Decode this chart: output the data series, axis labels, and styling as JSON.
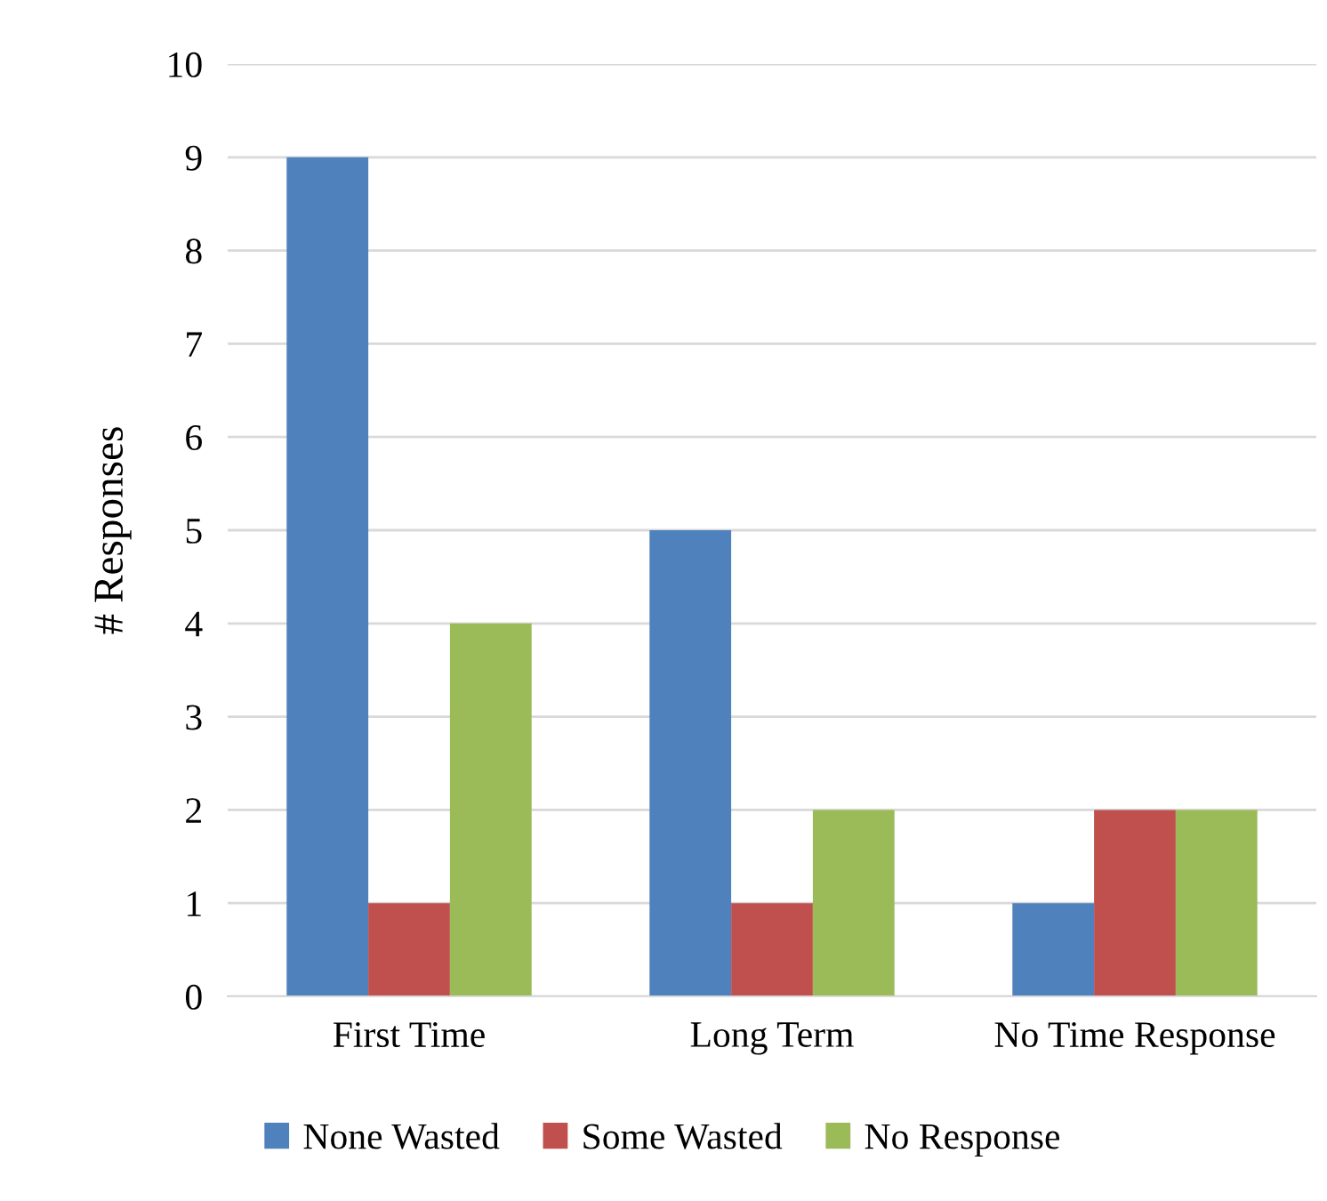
{
  "chart_data": {
    "type": "bar",
    "ylabel": "# Responses",
    "categories": [
      "First Time",
      "Long Term",
      "No Time Response"
    ],
    "series": [
      {
        "name": "None Wasted",
        "color": "#4f81bd",
        "values": [
          9,
          5,
          1
        ]
      },
      {
        "name": "Some Wasted",
        "color": "#c0504d",
        "values": [
          1,
          1,
          2
        ]
      },
      {
        "name": "No Response",
        "color": "#9bbb59",
        "values": [
          4,
          2,
          2
        ]
      }
    ],
    "ylim": [
      0,
      10
    ],
    "yticks": [
      0,
      1,
      2,
      3,
      4,
      5,
      6,
      7,
      8,
      9,
      10
    ],
    "grid": "y",
    "legend": "bottom"
  }
}
